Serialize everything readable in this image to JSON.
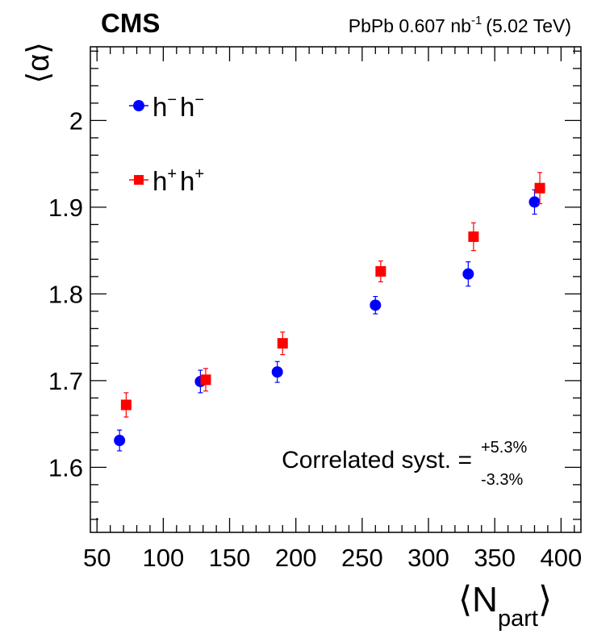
{
  "header": {
    "experiment": "CMS",
    "dataset_prefix": "PbPb 0.607 nb",
    "dataset_exp": "-1",
    "dataset_energy": "(5.02 TeV)"
  },
  "annotation": {
    "text": "Correlated syst. =",
    "upper": "+5.3%",
    "lower": "-3.3%"
  },
  "colors": {
    "hmhm": "#0000ff",
    "hphp": "#ff0000",
    "frame": "#000000"
  },
  "chart_data": {
    "type": "scatter",
    "xlabel": "⟨N",
    "xlabel_sub": "part",
    "xlabel_close": "⟩",
    "ylabel": "⟨α⟩",
    "xlim": [
      45,
      415
    ],
    "ylim": [
      1.525,
      2.085
    ],
    "xticks": [
      50,
      100,
      150,
      200,
      250,
      300,
      350,
      400
    ],
    "yticks": [
      1.6,
      1.7,
      1.8,
      1.9,
      2
    ],
    "ytick_labels": [
      "1.6",
      "1.7",
      "1.8",
      "1.9",
      "2"
    ],
    "legend_position": "top-left",
    "series": [
      {
        "name": "h⁻ h⁻",
        "name_base1": "h",
        "name_sup1": "−",
        "name_base2": "h",
        "name_sup2": "−",
        "marker": "circle",
        "color": "#0000ff",
        "x": [
          67,
          128,
          186,
          260,
          330,
          380
        ],
        "y": [
          1.631,
          1.699,
          1.71,
          1.787,
          1.823,
          1.906
        ],
        "err": [
          0.012,
          0.013,
          0.012,
          0.01,
          0.014,
          0.014
        ]
      },
      {
        "name": "h⁺ h⁺",
        "name_base1": "h",
        "name_sup1": "+",
        "name_base2": "h",
        "name_sup2": "+",
        "marker": "square",
        "color": "#ff0000",
        "x": [
          72,
          132,
          190,
          264,
          334,
          384
        ],
        "y": [
          1.672,
          1.701,
          1.743,
          1.826,
          1.866,
          1.922
        ],
        "err": [
          0.014,
          0.013,
          0.013,
          0.012,
          0.016,
          0.018
        ]
      }
    ]
  }
}
